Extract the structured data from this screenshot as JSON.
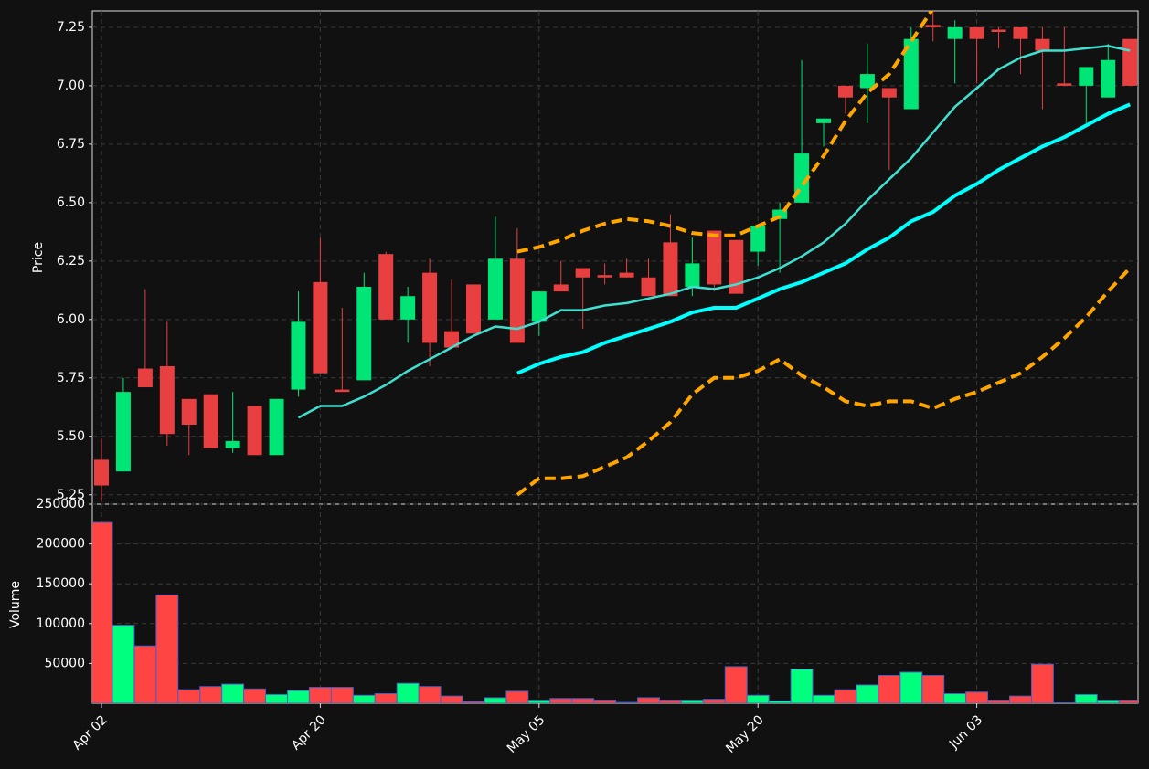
{
  "chart_data": [
    {
      "type": "candlestick",
      "y_label": "Price",
      "categories": [
        "Apr 02",
        null,
        null,
        null,
        null,
        null,
        null,
        null,
        null,
        null,
        "Apr 20",
        null,
        null,
        null,
        null,
        null,
        null,
        null,
        null,
        null,
        "May 05",
        null,
        null,
        null,
        null,
        null,
        null,
        null,
        null,
        null,
        "May 20",
        null,
        null,
        null,
        null,
        null,
        null,
        null,
        null,
        null,
        "Jun 03",
        null,
        null,
        null,
        null,
        null,
        null,
        null
      ],
      "open": [
        5.4,
        5.35,
        5.79,
        5.8,
        5.66,
        5.68,
        5.45,
        5.63,
        5.42,
        5.7,
        6.16,
        5.7,
        5.74,
        6.28,
        6.0,
        6.2,
        5.95,
        6.15,
        6.0,
        6.26,
        5.99,
        6.15,
        6.22,
        6.19,
        6.2,
        6.18,
        6.33,
        6.14,
        6.38,
        6.34,
        6.29,
        6.43,
        6.5,
        6.84,
        7.0,
        6.99,
        6.99,
        6.9,
        7.26,
        7.2,
        7.25,
        7.24,
        7.25,
        7.2,
        7.01,
        7.0,
        6.95,
        7.2
      ],
      "high": [
        5.49,
        5.75,
        6.13,
        5.99,
        5.66,
        5.68,
        5.69,
        5.63,
        5.66,
        6.12,
        6.35,
        6.05,
        6.2,
        6.29,
        6.14,
        6.26,
        6.17,
        6.15,
        6.44,
        6.39,
        6.12,
        6.25,
        6.22,
        6.24,
        6.26,
        6.26,
        6.45,
        6.35,
        6.38,
        6.34,
        6.4,
        6.5,
        7.11,
        6.86,
        7.0,
        7.18,
        6.99,
        7.25,
        7.32,
        7.28,
        7.25,
        7.25,
        7.25,
        7.25,
        7.25,
        7.08,
        7.18,
        7.2
      ],
      "low": [
        5.22,
        5.35,
        5.71,
        5.46,
        5.42,
        5.45,
        5.43,
        5.42,
        5.42,
        5.67,
        5.77,
        5.69,
        5.74,
        6.0,
        5.9,
        5.8,
        5.88,
        5.94,
        6.0,
        5.9,
        5.93,
        6.12,
        5.96,
        6.15,
        6.18,
        6.1,
        6.1,
        6.1,
        6.12,
        6.11,
        6.23,
        6.2,
        6.5,
        6.74,
        6.88,
        6.84,
        6.64,
        6.9,
        7.19,
        7.01,
        7.01,
        7.16,
        7.05,
        6.9,
        7.0,
        6.84,
        6.95,
        7.0
      ],
      "close": [
        5.29,
        5.69,
        5.71,
        5.51,
        5.55,
        5.45,
        5.48,
        5.42,
        5.66,
        5.99,
        5.77,
        5.69,
        6.14,
        6.0,
        6.1,
        5.9,
        5.88,
        5.94,
        6.26,
        5.9,
        6.12,
        6.12,
        6.18,
        6.18,
        6.18,
        6.1,
        6.1,
        6.24,
        6.15,
        6.11,
        6.4,
        6.47,
        6.71,
        6.86,
        6.95,
        7.05,
        6.95,
        7.2,
        7.25,
        7.25,
        7.2,
        7.23,
        7.2,
        7.15,
        7.0,
        7.08,
        7.11,
        7.0
      ],
      "up_color": "#00e676",
      "down_color": "#e84040",
      "lines": [
        {
          "color": "#40e0d0",
          "width": 2.5,
          "dashed": false,
          "values": [
            null,
            null,
            null,
            null,
            null,
            null,
            null,
            null,
            null,
            5.58,
            5.63,
            5.63,
            5.67,
            5.72,
            5.78,
            5.83,
            5.88,
            5.93,
            5.97,
            5.96,
            5.99,
            6.04,
            6.04,
            6.06,
            6.07,
            6.09,
            6.11,
            6.14,
            6.13,
            6.15,
            6.18,
            6.22,
            6.27,
            6.33,
            6.41,
            6.51,
            6.6,
            6.69,
            6.8,
            6.91,
            6.99,
            7.07,
            7.12,
            7.15,
            7.15,
            7.16,
            7.17,
            7.15
          ]
        },
        {
          "color": "#00ffff",
          "width": 4,
          "dashed": false,
          "values": [
            null,
            null,
            null,
            null,
            null,
            null,
            null,
            null,
            null,
            null,
            null,
            null,
            null,
            null,
            null,
            null,
            null,
            null,
            null,
            5.77,
            5.81,
            5.84,
            5.86,
            5.9,
            5.93,
            5.96,
            5.99,
            6.03,
            6.05,
            6.05,
            6.09,
            6.13,
            6.16,
            6.2,
            6.24,
            6.3,
            6.35,
            6.42,
            6.46,
            6.53,
            6.58,
            6.64,
            6.69,
            6.74,
            6.78,
            6.83,
            6.88,
            6.92
          ]
        },
        {
          "color": "#ffa500",
          "width": 4,
          "dashed": true,
          "values": [
            null,
            null,
            null,
            null,
            null,
            null,
            null,
            null,
            null,
            null,
            null,
            null,
            null,
            null,
            null,
            null,
            null,
            null,
            null,
            6.29,
            6.31,
            6.34,
            6.38,
            6.41,
            6.43,
            6.42,
            6.4,
            6.37,
            6.36,
            6.36,
            6.4,
            6.44,
            6.57,
            6.7,
            6.85,
            6.97,
            7.05,
            7.19,
            7.33,
            null,
            null,
            null,
            null,
            null,
            null,
            null,
            null,
            null
          ]
        },
        {
          "color": "#ffa500",
          "width": 4,
          "dashed": true,
          "values": [
            null,
            null,
            null,
            null,
            null,
            null,
            null,
            null,
            null,
            null,
            null,
            null,
            null,
            null,
            null,
            null,
            null,
            null,
            null,
            5.25,
            5.32,
            5.32,
            5.33,
            5.37,
            5.41,
            5.48,
            5.56,
            5.68,
            5.75,
            5.75,
            5.78,
            5.83,
            5.76,
            5.71,
            5.65,
            5.63,
            5.65,
            5.65,
            5.62,
            5.66,
            5.69,
            5.73,
            5.77,
            5.84,
            5.92,
            6.01,
            6.12,
            6.22
          ]
        }
      ],
      "ylim": [
        5.21,
        7.32
      ],
      "yticks": [
        5.25,
        {
          "value": 5.5,
          "label": "5.50"
        },
        5.75,
        {
          "value": 6,
          "label": "6.00"
        },
        6.25,
        {
          "value": 6.5,
          "label": "6.50"
        },
        6.75,
        {
          "value": 7,
          "label": "7.00"
        },
        7.25
      ],
      "grid": true
    },
    {
      "type": "bar",
      "y_label": "Volume",
      "values": [
        227000,
        98000,
        72000,
        136000,
        17000,
        21000,
        24000,
        18000,
        11000,
        16000,
        20000,
        20000,
        10000,
        12000,
        25000,
        21000,
        9000,
        2000,
        7000,
        15000,
        4000,
        6000,
        6000,
        4000,
        1000,
        7000,
        4000,
        4000,
        5000,
        46000,
        10000,
        3000,
        43000,
        10000,
        17000,
        23000,
        35000,
        39000,
        35000,
        12000,
        14000,
        4000,
        9000,
        49000,
        500,
        11000,
        4000,
        4000
      ],
      "up_color": "#00ff7f",
      "down_color": "#ff4444",
      "edge_color": "#4a5fc1",
      "ylim": [
        0,
        250000
      ],
      "yticks": [
        50000,
        100000,
        150000,
        200000,
        250000
      ],
      "grid": true
    }
  ]
}
